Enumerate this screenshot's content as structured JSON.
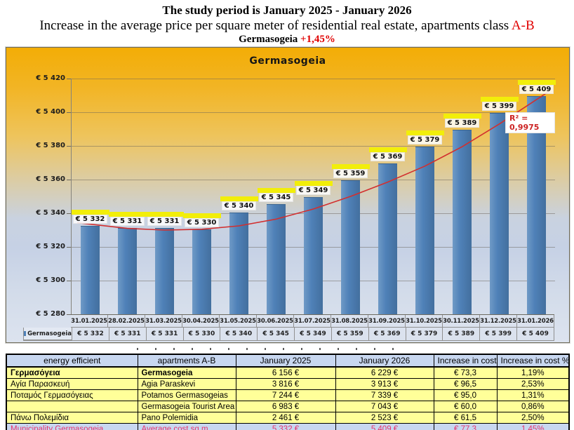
{
  "header": {
    "title1": "The study period is January 2025 - January 2026",
    "title2_black": "Increase in the average price per square meter of residential real estate, apartments class ",
    "title2_red": "A-B",
    "title3_black": "Germasogeia ",
    "title3_red": "+1,45%"
  },
  "chart_data": {
    "type": "bar",
    "title": "Germasogeia",
    "legend_label": "Germasogeia",
    "legend_position": "bottom-left",
    "grid": true,
    "categories": [
      "31.01.2025",
      "28.02.2025",
      "31.03.2025",
      "30.04.2025",
      "31.05.2025",
      "30.06.2025",
      "31.07.2025",
      "31.08.2025",
      "31.09.2025",
      "31.10.2025",
      "30.11.2025",
      "31.12.2025",
      "31.01.2026"
    ],
    "values": [
      5332,
      5331,
      5331,
      5330,
      5340,
      5345,
      5349,
      5359,
      5369,
      5379,
      5389,
      5399,
      5409
    ],
    "value_labels": [
      "€ 5 332",
      "€ 5 331",
      "€ 5 331",
      "€ 5 330",
      "€ 5 340",
      "€ 5 345",
      "€ 5 349",
      "€ 5 359",
      "€ 5 369",
      "€ 5 379",
      "€ 5 389",
      "€ 5 399",
      "€ 5 409"
    ],
    "ylim": [
      5280,
      5420
    ],
    "ytick_step": 20,
    "ytick_labels": [
      "€ 5 280",
      "€ 5 300",
      "€ 5 320",
      "€ 5 340",
      "€ 5 360",
      "€ 5 380",
      "€ 5 400",
      "€ 5 420"
    ],
    "trendline": {
      "type": "polynomial",
      "r2_label": "R² = 0,9975",
      "points": [
        5333.5,
        5331,
        5330,
        5330.5,
        5332.5,
        5336.5,
        5342.5,
        5350,
        5358.5,
        5368,
        5379.5,
        5393,
        5407.5
      ]
    },
    "colors": {
      "bar": "#4f81b8",
      "trend": "#d22f2f",
      "label_highlight": "#f2ee0a",
      "plot_gradient_top": "#f3ad06",
      "plot_gradient_bottom": "#dce3ef"
    }
  },
  "table": {
    "headers": [
      "energy efficient",
      "apartments A-B",
      "January 2025",
      "January 2026",
      "Increase in cost",
      "Increase in cost  %"
    ],
    "rows": [
      {
        "style": "bold",
        "cells": [
          "Γερμασόγεια",
          "Germasogeia",
          "6 156 €",
          "6 229 €",
          "€ 73,3",
          "1,19%"
        ]
      },
      {
        "style": "normal",
        "cells": [
          "Αγία Παρασκευή",
          "Agia Paraskevi",
          "3 816 €",
          "3 913 €",
          "€ 96,5",
          "2,53%"
        ]
      },
      {
        "style": "normal",
        "cells": [
          "Ποταμός Γερμασόγειας",
          "Potamos Germasogeias",
          "7 244 €",
          "7 339 €",
          "€ 95,0",
          "1,31%"
        ]
      },
      {
        "style": "normal",
        "cells": [
          "",
          "Germasogeia Tourist Area",
          "6 983 €",
          "7 043 €",
          "€ 60,0",
          "0,86%"
        ]
      },
      {
        "style": "normal",
        "cells": [
          "Πάνω Πολεμίδια",
          "Pano Polemidia",
          "2 461 €",
          "2 523 €",
          "€ 61,5",
          "2,50%"
        ]
      },
      {
        "style": "summary",
        "cells": [
          "Municipality Germasogeia",
          "Average cost sq.m.",
          "5 332 €",
          "5 409 €",
          "€ 77,3",
          "1,45%"
        ]
      }
    ]
  }
}
